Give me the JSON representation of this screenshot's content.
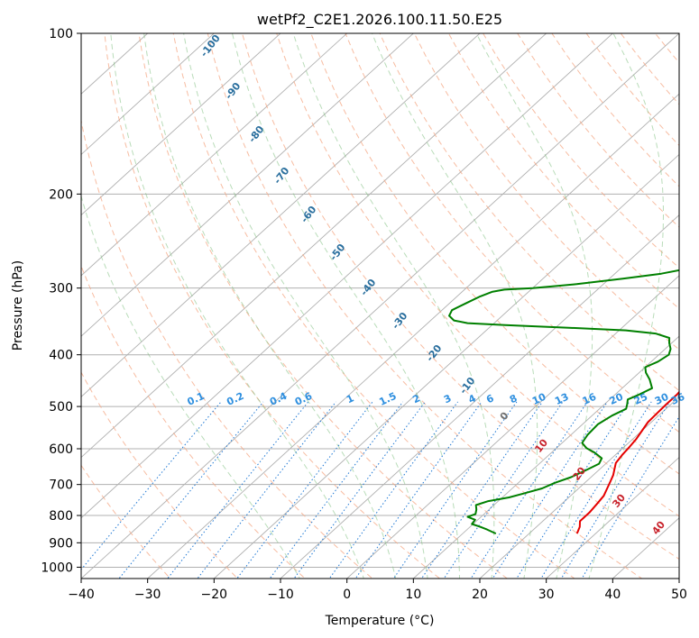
{
  "chart_data": {
    "type": "line",
    "title": "wetPf2_C2E1.2026.100.11.50.E25",
    "xlabel": "Temperature (°C)",
    "ylabel": "Pressure (hPa)",
    "xlim": [
      -40,
      50
    ],
    "ylim": [
      1050,
      100
    ],
    "y_scale": "log",
    "grid": true,
    "x_ticks": [
      "−40",
      "−30",
      "−20",
      "−10",
      "0",
      "10",
      "20",
      "30",
      "40",
      "50"
    ],
    "y_ticks": [
      "100",
      "200",
      "300",
      "400",
      "500",
      "600",
      "700",
      "800",
      "900",
      "1000"
    ],
    "series": [
      {
        "name": "Temperature",
        "color": "#e50000",
        "points": [
          [
            27.2,
            865
          ],
          [
            26.5,
            840
          ],
          [
            25.6,
            820
          ],
          [
            25.6,
            790
          ],
          [
            25.3,
            760
          ],
          [
            25.0,
            735
          ],
          [
            24.3,
            712
          ],
          [
            23.6,
            690
          ],
          [
            23.0,
            672
          ],
          [
            22.2,
            655
          ],
          [
            21.4,
            638
          ],
          [
            21.0,
            615
          ],
          [
            20.8,
            595
          ],
          [
            20.5,
            575
          ],
          [
            20.0,
            555
          ],
          [
            19.5,
            535
          ],
          [
            19.4,
            515
          ],
          [
            19.3,
            495
          ],
          [
            19.3,
            475
          ],
          [
            19.0,
            455
          ],
          [
            18.6,
            435
          ],
          [
            18.2,
            415
          ],
          [
            17.5,
            400
          ],
          [
            17.1,
            390
          ],
          [
            17.0,
            378
          ],
          [
            17.2,
            362
          ],
          [
            17.5,
            350
          ],
          [
            17.3,
            340
          ],
          [
            16.5,
            330
          ],
          [
            15.4,
            320
          ],
          [
            13.8,
            305
          ],
          [
            12.3,
            290
          ],
          [
            10.5,
            272
          ],
          [
            9.2,
            258
          ],
          [
            8.5,
            248
          ],
          [
            7.5,
            235
          ],
          [
            6.4,
            222
          ],
          [
            5.2,
            210
          ],
          [
            3.9,
            198
          ],
          [
            2.6,
            188
          ],
          [
            1.0,
            176
          ],
          [
            0.0,
            168
          ],
          [
            -1.5,
            158
          ],
          [
            -2.0,
            150
          ],
          [
            -3.0,
            143
          ],
          [
            -3.8,
            135
          ],
          [
            -4.4,
            128
          ],
          [
            -4.5,
            120
          ],
          [
            -4.2,
            113
          ],
          [
            -3.0,
            108
          ],
          [
            -1.0,
            104
          ],
          [
            2.0,
            101
          ],
          [
            5.0,
            99
          ]
        ]
      },
      {
        "name": "Dewpoint",
        "color": "#008000",
        "points": [
          [
            15.0,
            865
          ],
          [
            13.0,
            850
          ],
          [
            11.5,
            840
          ],
          [
            9.8,
            830
          ],
          [
            9.6,
            815
          ],
          [
            8.0,
            805
          ],
          [
            8.7,
            795
          ],
          [
            8.1,
            780
          ],
          [
            7.3,
            765
          ],
          [
            8.5,
            752
          ],
          [
            11.0,
            740
          ],
          [
            12.5,
            728
          ],
          [
            14.5,
            712
          ],
          [
            15.5,
            695
          ],
          [
            17.0,
            678
          ],
          [
            18.0,
            660
          ],
          [
            19.0,
            640
          ],
          [
            18.5,
            625
          ],
          [
            16.5,
            610
          ],
          [
            14.5,
            598
          ],
          [
            13.0,
            585
          ],
          [
            12.5,
            565
          ],
          [
            12.3,
            540
          ],
          [
            13.0,
            520
          ],
          [
            14.0,
            505
          ],
          [
            13.4,
            495
          ],
          [
            12.7,
            485
          ],
          [
            13.6,
            475
          ],
          [
            14.5,
            462
          ],
          [
            12.7,
            445
          ],
          [
            11.0,
            432
          ],
          [
            10.0,
            422
          ],
          [
            11.0,
            412
          ],
          [
            11.5,
            400
          ],
          [
            10.8,
            390
          ],
          [
            9.6,
            380
          ],
          [
            8.8,
            372
          ],
          [
            6.0,
            365
          ],
          [
            1.0,
            360
          ],
          [
            -8.0,
            356
          ],
          [
            -18.0,
            352
          ],
          [
            -24.0,
            349
          ],
          [
            -26.5,
            345
          ],
          [
            -28.0,
            338
          ],
          [
            -28.5,
            330
          ],
          [
            -27.5,
            320
          ],
          [
            -26.5,
            311
          ],
          [
            -25.5,
            305
          ],
          [
            -24.0,
            302
          ],
          [
            -20.0,
            300
          ],
          [
            -14.0,
            295
          ],
          [
            -8.0,
            288
          ],
          [
            -3.0,
            282
          ],
          [
            0.5,
            275
          ],
          [
            3.0,
            268
          ],
          [
            4.5,
            258
          ],
          [
            5.2,
            248
          ],
          [
            5.0,
            238
          ],
          [
            4.6,
            228
          ],
          [
            4.0,
            215
          ],
          [
            3.2,
            202
          ],
          [
            2.0,
            190
          ],
          [
            1.0,
            180
          ],
          [
            0.0,
            172
          ],
          [
            -0.8,
            162
          ],
          [
            -1.6,
            150
          ],
          [
            -2.3,
            140
          ],
          [
            -2.4,
            130
          ],
          [
            -3.3,
            123
          ],
          [
            -4.0,
            117
          ],
          [
            -3.8,
            112
          ],
          [
            -2.6,
            108
          ],
          [
            -2.8,
            104
          ],
          [
            -2.5,
            101
          ],
          [
            -2.8,
            99
          ]
        ]
      }
    ],
    "dry_adiabats": [
      -30,
      -20,
      -10,
      0,
      10,
      20,
      30,
      40,
      50,
      60,
      70,
      80,
      90,
      100,
      110,
      120,
      130,
      140,
      150,
      160,
      170,
      180,
      190,
      200,
      210,
      220,
      230,
      240
    ],
    "moist_adiabats": [
      -10,
      0,
      5,
      10,
      15,
      20,
      25,
      30,
      35
    ],
    "mixing_ratio_labels": [
      "0.1",
      "0.2",
      "0.4",
      "0.6",
      "1",
      "1.5",
      "2",
      "3",
      "4",
      "6",
      "8",
      "10",
      "13",
      "16",
      "20",
      "25",
      "30",
      "36"
    ],
    "theta_w_labels": [
      "-100",
      "-90",
      "-80",
      "-70",
      "-60",
      "-50",
      "-40",
      "-30",
      "-20",
      "-10",
      "0",
      "10",
      "20",
      "30",
      "40"
    ]
  }
}
